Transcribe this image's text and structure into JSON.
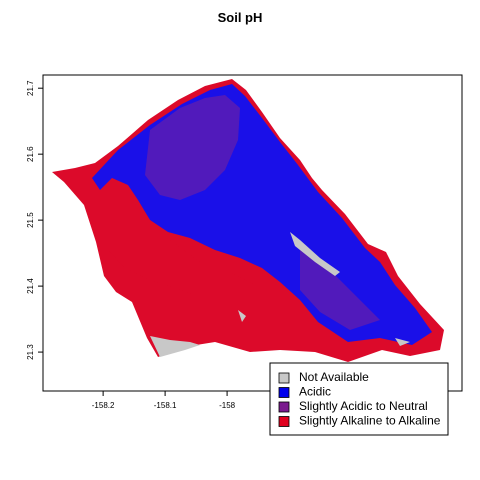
{
  "map": {
    "title": "Soil pH",
    "xlim": [
      -158.297,
      -157.621
    ],
    "ylim": [
      21.241,
      21.72
    ],
    "xticks": [
      -158.2,
      -158.1,
      -158
    ],
    "yticks": [
      21.3,
      21.4,
      21.5,
      21.6,
      21.7
    ],
    "legend": [
      {
        "name": "Not Available",
        "color": "#c8c8c8"
      },
      {
        "name": "Acidic",
        "color": "#0000ee"
      },
      {
        "name": "Slightly Acidic to Neutral",
        "color": "#7a1a8e"
      },
      {
        "name": "Slightly Alkaline to Alkaline",
        "color": "#e0001e"
      }
    ]
  }
}
